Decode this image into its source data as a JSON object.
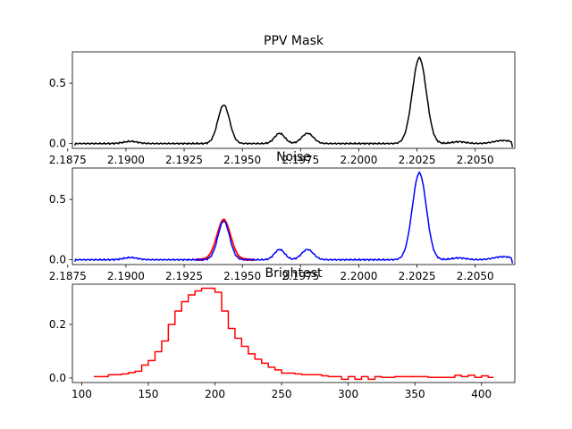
{
  "chart_data": [
    {
      "type": "line",
      "title": "PPV Mask",
      "xlabel": "",
      "ylabel": "",
      "xlim": [
        2.1877,
        2.2067
      ],
      "ylim": [
        -0.04,
        0.76
      ],
      "xticks": [
        2.1875,
        2.19,
        2.1925,
        2.195,
        2.1975,
        2.2,
        2.2025,
        2.205
      ],
      "xtick_labels": [
        "2.1875",
        "2.1900",
        "2.1925",
        "2.1950",
        "2.1975",
        "2.2000",
        "2.2025",
        "2.2050"
      ],
      "yticks": [
        0.0,
        0.5
      ],
      "ytick_labels": [
        "0.0",
        "0.5"
      ],
      "series": [
        {
          "color": "#000000",
          "peaks": [
            [
              2.1942,
              0.32,
              0.00025
            ],
            [
              2.1966,
              0.085,
              0.00022
            ],
            [
              2.1978,
              0.085,
              0.00025
            ],
            [
              2.2026,
              0.71,
              0.0003
            ],
            [
              2.1902,
              0.018,
              0.0003
            ],
            [
              2.2043,
              0.015,
              0.0003
            ],
            [
              2.2062,
              0.025,
              0.0004
            ]
          ],
          "x_range": [
            2.1878,
            2.2066
          ],
          "end_drop": -0.03
        }
      ]
    },
    {
      "type": "line",
      "title": "Noise",
      "xlabel": "",
      "ylabel": "",
      "xlim": [
        2.1877,
        2.2067
      ],
      "ylim": [
        -0.04,
        0.76
      ],
      "xticks": [
        2.1875,
        2.19,
        2.1925,
        2.195,
        2.1975,
        2.2,
        2.2025,
        2.205
      ],
      "xtick_labels": [
        "2.1875",
        "2.1900",
        "2.1925",
        "2.1950",
        "2.1975",
        "2.2000",
        "2.2025",
        "2.2050"
      ],
      "yticks": [
        0.0,
        0.5
      ],
      "ytick_labels": [
        "0.0",
        "0.5"
      ],
      "series": [
        {
          "color": "#ff0000",
          "peaks": [
            [
              2.1942,
              0.33,
              0.0003
            ]
          ],
          "x_range": [
            2.193,
            2.1955
          ],
          "end_drop": 0
        },
        {
          "color": "#0000ff",
          "peaks": [
            [
              2.1942,
              0.32,
              0.00025
            ],
            [
              2.1966,
              0.085,
              0.00022
            ],
            [
              2.1978,
              0.085,
              0.00025
            ],
            [
              2.2026,
              0.72,
              0.0003
            ],
            [
              2.1902,
              0.018,
              0.0003
            ],
            [
              2.2043,
              0.015,
              0.0003
            ],
            [
              2.2062,
              0.025,
              0.0004
            ]
          ],
          "x_range": [
            2.1878,
            2.2066
          ],
          "end_drop": -0.03
        }
      ]
    },
    {
      "type": "line",
      "step": true,
      "title": "Brightest",
      "xlabel": "",
      "ylabel": "",
      "xlim": [
        93,
        425
      ],
      "ylim": [
        -0.017,
        0.35
      ],
      "xticks": [
        100,
        150,
        200,
        250,
        300,
        350,
        400
      ],
      "xtick_labels": [
        "100",
        "150",
        "200",
        "250",
        "300",
        "350",
        "400"
      ],
      "yticks": [
        0.0,
        0.2
      ],
      "ytick_labels": [
        "0.0",
        "0.2"
      ],
      "series": [
        {
          "color": "#ff0000",
          "x": [
            109,
            115,
            120,
            125,
            130,
            135,
            140,
            145,
            150,
            155,
            160,
            165,
            170,
            175,
            180,
            185,
            190,
            195,
            200,
            205,
            210,
            215,
            220,
            225,
            230,
            235,
            240,
            245,
            250,
            255,
            260,
            265,
            270,
            275,
            280,
            285,
            290,
            295,
            300,
            305,
            310,
            315,
            320,
            325,
            330,
            335,
            340,
            345,
            350,
            355,
            360,
            365,
            370,
            375,
            380,
            385,
            390,
            395,
            400,
            405,
            409
          ],
          "values": [
            0.005,
            0.005,
            0.012,
            0.012,
            0.015,
            0.02,
            0.025,
            0.048,
            0.065,
            0.098,
            0.138,
            0.2,
            0.25,
            0.285,
            0.31,
            0.325,
            0.335,
            0.335,
            0.32,
            0.25,
            0.185,
            0.148,
            0.118,
            0.09,
            0.07,
            0.055,
            0.04,
            0.03,
            0.018,
            0.018,
            0.015,
            0.012,
            0.012,
            0.012,
            0.008,
            0.005,
            0.005,
            -0.005,
            0.005,
            -0.005,
            0.005,
            -0.005,
            0.005,
            0.002,
            0.002,
            0.005,
            0.005,
            0.005,
            0.005,
            0.005,
            0.002,
            0.002,
            0.002,
            0.002,
            0.01,
            0.005,
            0.01,
            0.002,
            0.008,
            0.002,
            0.002
          ]
        }
      ]
    }
  ]
}
